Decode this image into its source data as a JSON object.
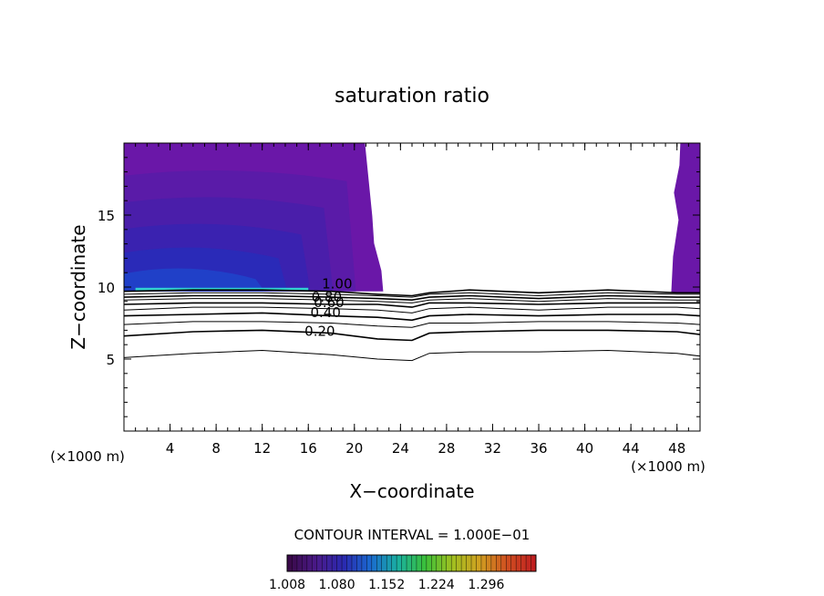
{
  "chart_data": {
    "type": "contour",
    "title": "saturation ratio",
    "xlabel": "X−coordinate",
    "ylabel": "Z−coordinate",
    "x_unit_left": "(×1000 m)",
    "x_unit_right": "(×1000 m)",
    "xlim": [
      0,
      50
    ],
    "ylim": [
      0,
      20
    ],
    "x_ticks": [
      "4",
      "8",
      "12",
      "16",
      "20",
      "24",
      "28",
      "32",
      "36",
      "40",
      "44",
      "48"
    ],
    "y_ticks": [
      "5",
      "10",
      "15"
    ],
    "contour_interval_label": "CONTOUR INTERVAL = 1.000E−01",
    "contour_labels": [
      "1.00",
      "0.80",
      "0.60",
      "0.40",
      "0.20"
    ],
    "contour_lines": [
      {
        "level": 0.1,
        "points": [
          [
            0,
            5.1
          ],
          [
            6,
            5.4
          ],
          [
            12,
            5.6
          ],
          [
            18,
            5.3
          ],
          [
            22,
            5.0
          ],
          [
            25,
            4.9
          ],
          [
            26.5,
            5.4
          ],
          [
            30,
            5.5
          ],
          [
            36,
            5.5
          ],
          [
            42,
            5.6
          ],
          [
            48,
            5.4
          ],
          [
            50,
            5.2
          ]
        ]
      },
      {
        "level": 0.2,
        "points": [
          [
            0,
            6.6
          ],
          [
            6,
            6.9
          ],
          [
            12,
            7.0
          ],
          [
            18,
            6.8
          ],
          [
            22,
            6.4
          ],
          [
            25,
            6.3
          ],
          [
            26.5,
            6.8
          ],
          [
            30,
            6.9
          ],
          [
            36,
            7.0
          ],
          [
            42,
            7.0
          ],
          [
            48,
            6.9
          ],
          [
            50,
            6.7
          ]
        ]
      },
      {
        "level": 0.3,
        "points": [
          [
            0,
            7.4
          ],
          [
            6,
            7.6
          ],
          [
            12,
            7.6
          ],
          [
            18,
            7.5
          ],
          [
            22,
            7.3
          ],
          [
            25,
            7.2
          ],
          [
            26.5,
            7.5
          ],
          [
            30,
            7.5
          ],
          [
            36,
            7.6
          ],
          [
            42,
            7.6
          ],
          [
            48,
            7.5
          ],
          [
            50,
            7.4
          ]
        ]
      },
      {
        "level": 0.4,
        "points": [
          [
            0,
            8.0
          ],
          [
            6,
            8.1
          ],
          [
            12,
            8.2
          ],
          [
            18,
            8.0
          ],
          [
            22,
            7.9
          ],
          [
            25,
            7.7
          ],
          [
            26.5,
            8.0
          ],
          [
            30,
            8.1
          ],
          [
            36,
            8.0
          ],
          [
            42,
            8.1
          ],
          [
            48,
            8.1
          ],
          [
            50,
            8.0
          ]
        ]
      },
      {
        "level": 0.5,
        "points": [
          [
            0,
            8.4
          ],
          [
            6,
            8.6
          ],
          [
            12,
            8.6
          ],
          [
            18,
            8.5
          ],
          [
            22,
            8.4
          ],
          [
            25,
            8.2
          ],
          [
            26.5,
            8.5
          ],
          [
            30,
            8.6
          ],
          [
            36,
            8.4
          ],
          [
            42,
            8.6
          ],
          [
            48,
            8.6
          ],
          [
            50,
            8.5
          ]
        ]
      },
      {
        "level": 0.6,
        "points": [
          [
            0,
            8.8
          ],
          [
            6,
            8.9
          ],
          [
            12,
            8.9
          ],
          [
            18,
            8.8
          ],
          [
            22,
            8.8
          ],
          [
            25,
            8.6
          ],
          [
            26.5,
            8.9
          ],
          [
            30,
            8.9
          ],
          [
            36,
            8.8
          ],
          [
            42,
            8.9
          ],
          [
            48,
            8.9
          ],
          [
            50,
            8.9
          ]
        ]
      },
      {
        "level": 0.7,
        "points": [
          [
            0,
            9.1
          ],
          [
            6,
            9.2
          ],
          [
            12,
            9.2
          ],
          [
            18,
            9.1
          ],
          [
            22,
            9.0
          ],
          [
            25,
            8.9
          ],
          [
            26.5,
            9.1
          ],
          [
            30,
            9.2
          ],
          [
            36,
            9.0
          ],
          [
            42,
            9.2
          ],
          [
            48,
            9.1
          ],
          [
            50,
            9.1
          ]
        ]
      },
      {
        "level": 0.8,
        "points": [
          [
            0,
            9.3
          ],
          [
            6,
            9.4
          ],
          [
            12,
            9.4
          ],
          [
            18,
            9.3
          ],
          [
            22,
            9.2
          ],
          [
            25,
            9.1
          ],
          [
            26.5,
            9.3
          ],
          [
            30,
            9.4
          ],
          [
            36,
            9.2
          ],
          [
            42,
            9.4
          ],
          [
            48,
            9.3
          ],
          [
            50,
            9.3
          ]
        ]
      },
      {
        "level": 0.9,
        "points": [
          [
            0,
            9.5
          ],
          [
            6,
            9.6
          ],
          [
            12,
            9.6
          ],
          [
            18,
            9.5
          ],
          [
            22,
            9.4
          ],
          [
            25,
            9.3
          ],
          [
            26.5,
            9.5
          ],
          [
            30,
            9.6
          ],
          [
            36,
            9.4
          ],
          [
            42,
            9.6
          ],
          [
            48,
            9.5
          ],
          [
            50,
            9.5
          ]
        ]
      },
      {
        "level": 1.0,
        "points": [
          [
            0,
            9.7
          ],
          [
            6,
            9.8
          ],
          [
            12,
            9.8
          ],
          [
            18,
            9.7
          ],
          [
            22,
            9.5
          ],
          [
            25,
            9.4
          ],
          [
            26.5,
            9.6
          ],
          [
            30,
            9.8
          ],
          [
            36,
            9.6
          ],
          [
            42,
            9.8
          ],
          [
            48,
            9.6
          ],
          [
            50,
            9.6
          ]
        ]
      }
    ],
    "shaded_regions": [
      {
        "x_from": 0,
        "x_to": 22.5,
        "z_from": 9.7,
        "z_to": 20,
        "level_min": 1.008,
        "level_max": 1.152
      },
      {
        "x_from": 47.5,
        "x_to": 50,
        "z_from": 9.6,
        "z_to": 20,
        "level_min": 1.008,
        "level_max": 1.04
      }
    ],
    "colorbar": {
      "tick_labels": [
        "1.008",
        "1.080",
        "1.152",
        "1.224",
        "1.296"
      ],
      "range": [
        1.008,
        1.368
      ],
      "colors": [
        "#3a0a4a",
        "#4a1a8a",
        "#2a2ab0",
        "#1a6ad0",
        "#1ab0a0",
        "#3ac03a",
        "#a0c020",
        "#d0a020",
        "#d05020",
        "#c02020"
      ]
    }
  }
}
